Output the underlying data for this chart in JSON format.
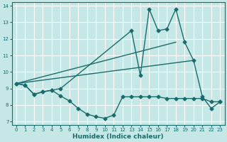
{
  "xlabel": "Humidex (Indice chaleur)",
  "xlim": [
    -0.5,
    23.5
  ],
  "ylim": [
    6.8,
    14.2
  ],
  "yticks": [
    7,
    8,
    9,
    10,
    11,
    12,
    13,
    14
  ],
  "xticks": [
    0,
    1,
    2,
    3,
    4,
    5,
    6,
    7,
    8,
    9,
    10,
    11,
    12,
    13,
    14,
    15,
    16,
    17,
    18,
    19,
    20,
    21,
    22,
    23
  ],
  "bg_color": "#c5e8e6",
  "grid_color": "#ffffff",
  "line_color": "#1a6b6b",
  "lines": [
    {
      "x": [
        0,
        1,
        2,
        3,
        4,
        5,
        6,
        7,
        8,
        9,
        10,
        11,
        12,
        13,
        14,
        15,
        16,
        17,
        18,
        19,
        20,
        21,
        22,
        23
      ],
      "y": [
        9.3,
        9.2,
        8.65,
        8.8,
        8.9,
        8.55,
        8.25,
        7.8,
        7.45,
        7.3,
        7.2,
        7.4,
        8.5,
        8.5,
        8.5,
        8.5,
        8.5,
        8.4,
        8.4,
        8.4,
        8.4,
        8.4,
        8.2,
        8.2
      ],
      "marker": "D",
      "markersize": 2.5,
      "linewidth": 1.0
    },
    {
      "x": [
        0,
        1,
        2,
        3,
        4,
        5,
        13,
        14,
        15,
        16,
        17,
        18,
        19,
        20,
        21,
        22,
        23
      ],
      "y": [
        9.3,
        9.2,
        8.65,
        8.8,
        8.9,
        9.0,
        12.5,
        9.8,
        13.8,
        12.5,
        12.6,
        13.8,
        11.8,
        10.7,
        8.5,
        7.8,
        8.2
      ],
      "marker": "D",
      "markersize": 2.5,
      "linewidth": 1.0
    },
    {
      "x": [
        0,
        18
      ],
      "y": [
        9.3,
        11.8
      ],
      "marker": null,
      "markersize": 0,
      "linewidth": 1.0
    },
    {
      "x": [
        0,
        20
      ],
      "y": [
        9.3,
        10.7
      ],
      "marker": null,
      "markersize": 0,
      "linewidth": 1.0
    }
  ]
}
